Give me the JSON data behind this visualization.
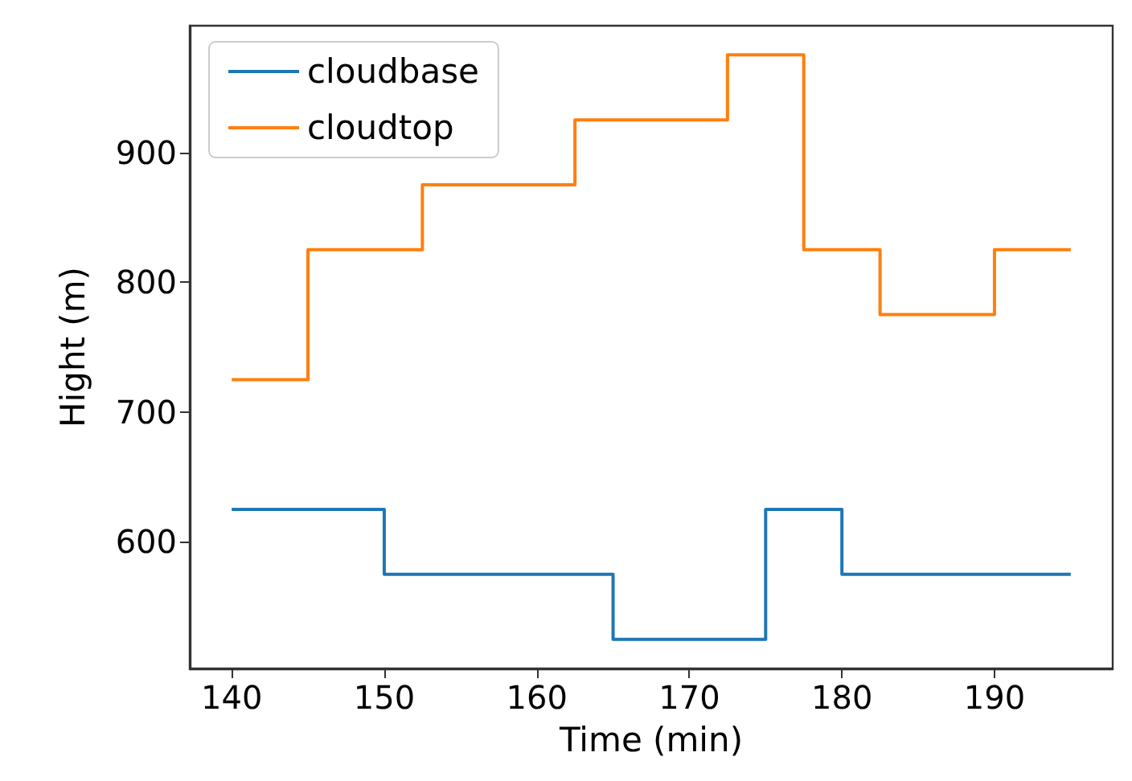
{
  "chart_data": {
    "type": "step",
    "xlabel": "Time (min)",
    "ylabel": "Hight (m)",
    "xlim": [
      137.25,
      197.75
    ],
    "xticks": [
      140,
      150,
      160,
      170,
      180,
      190
    ],
    "ylim": [
      502.5,
      997.5
    ],
    "yticks": [
      600,
      700,
      800,
      900
    ],
    "grid": false,
    "legend": "top left",
    "series": [
      {
        "name": "cloudbase",
        "color": "#1f77b4",
        "x": [
          140,
          150,
          165,
          175,
          180,
          195
        ],
        "values": [
          625,
          575,
          525,
          625,
          575,
          575
        ]
      },
      {
        "name": "cloudtop",
        "color": "#ff7f0e",
        "x": [
          140,
          145,
          152.5,
          162.5,
          172.5,
          177.5,
          182.5,
          190,
          195
        ],
        "values": [
          725,
          825,
          875,
          925,
          975,
          825,
          775,
          825,
          825
        ]
      }
    ]
  }
}
